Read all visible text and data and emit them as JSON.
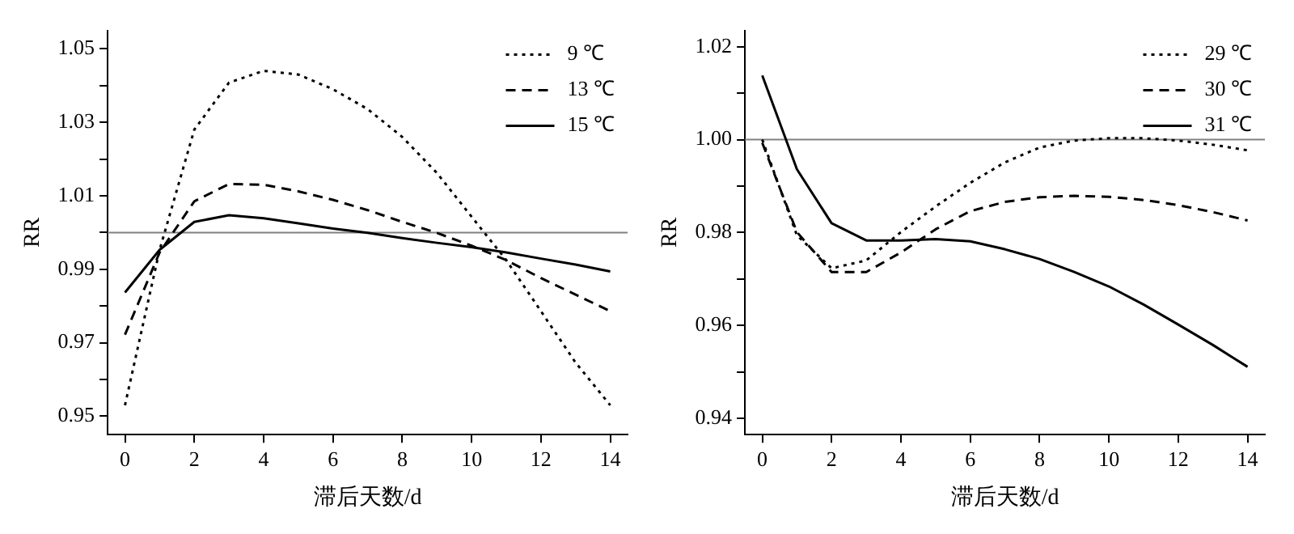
{
  "chart_data": [
    {
      "type": "line",
      "xlabel": "滞后天数/d",
      "ylabel": "RR",
      "x": [
        0,
        1,
        2,
        3,
        4,
        5,
        6,
        7,
        8,
        9,
        10,
        11,
        12,
        13,
        14
      ],
      "xlim": [
        -0.5,
        14.5
      ],
      "xticks": [
        0,
        2,
        4,
        6,
        8,
        10,
        12,
        14
      ],
      "ylim": [
        0.945,
        1.055
      ],
      "yticks": [
        0.95,
        {
          "value": 0.96,
          "label": null
        },
        0.97,
        {
          "value": 0.98,
          "label": null
        },
        0.99,
        {
          "value": 1.0,
          "label": null
        },
        1.01,
        {
          "value": 1.02,
          "label": null
        },
        1.03,
        {
          "value": 1.04,
          "label": null
        },
        1.05
      ],
      "grid": false,
      "legend": "top right",
      "marker": "none",
      "ref_lines": [
        {
          "axis": "y",
          "value": 1.0,
          "color": "#808080"
        }
      ],
      "series": [
        {
          "name": "9 ℃",
          "color": "#000000",
          "line_style": "dotted",
          "values": [
            0.953,
            0.9953,
            1.028,
            1.0408,
            1.044,
            1.043,
            1.039,
            1.0336,
            1.026,
            1.0162,
            1.0043,
            0.9925,
            0.9786,
            0.9646,
            0.953
          ]
        },
        {
          "name": "13 ℃",
          "color": "#000000",
          "line_style": "dashed",
          "values": [
            0.9722,
            0.9946,
            1.0085,
            1.0132,
            1.013,
            1.0112,
            1.0089,
            1.0061,
            1.0029,
            0.9999,
            0.9964,
            0.9925,
            0.9876,
            0.9831,
            0.9786
          ]
        },
        {
          "name": "15 ℃",
          "color": "#000000",
          "line_style": "solid",
          "values": [
            0.9837,
            0.9953,
            1.0029,
            1.0047,
            1.0039,
            1.0025,
            1.0011,
            0.9999,
            0.9985,
            0.9972,
            0.996,
            0.9946,
            0.9929,
            0.9913,
            0.9894
          ]
        }
      ]
    },
    {
      "type": "line",
      "xlabel": "滞后天数/d",
      "ylabel": "RR",
      "x": [
        0,
        1,
        2,
        3,
        4,
        5,
        6,
        7,
        8,
        9,
        10,
        11,
        12,
        13,
        14
      ],
      "xlim": [
        -0.5,
        14.5
      ],
      "xticks": [
        0,
        2,
        4,
        6,
        8,
        10,
        12,
        14
      ],
      "ylim": [
        0.9365,
        1.0235
      ],
      "yticks": [
        0.94,
        {
          "value": 0.95,
          "label": null
        },
        0.96,
        {
          "value": 0.97,
          "label": null
        },
        0.98,
        {
          "value": 0.99,
          "label": null
        },
        {
          "value": 1.0,
          "label": "1.00"
        },
        {
          "value": 1.01,
          "label": null
        },
        1.02
      ],
      "grid": false,
      "legend": "top right",
      "marker": "none",
      "ref_lines": [
        {
          "axis": "y",
          "value": 1.0,
          "color": "#808080"
        }
      ],
      "series": [
        {
          "name": "29 ℃",
          "color": "#000000",
          "line_style": "dotted",
          "values": [
            1.0,
            0.9794,
            0.9723,
            0.974,
            0.9801,
            0.9856,
            0.9907,
            0.9951,
            0.9983,
            0.9998,
            1.0003,
            1.0003,
            0.9998,
            0.9989,
            0.9977
          ]
        },
        {
          "name": "30 ℃",
          "color": "#000000",
          "line_style": "dashed",
          "values": [
            0.9993,
            0.9801,
            0.9715,
            0.9715,
            0.9757,
            0.9807,
            0.9846,
            0.9866,
            0.9876,
            0.9879,
            0.9877,
            0.987,
            0.9859,
            0.9844,
            0.9826
          ]
        },
        {
          "name": "31 ℃",
          "color": "#000000",
          "line_style": "solid",
          "values": [
            1.0138,
            0.9936,
            0.982,
            0.9783,
            0.9783,
            0.9786,
            0.9781,
            0.9764,
            0.9743,
            0.9715,
            0.9684,
            0.9645,
            0.9602,
            0.9558,
            0.9511
          ]
        }
      ]
    }
  ]
}
